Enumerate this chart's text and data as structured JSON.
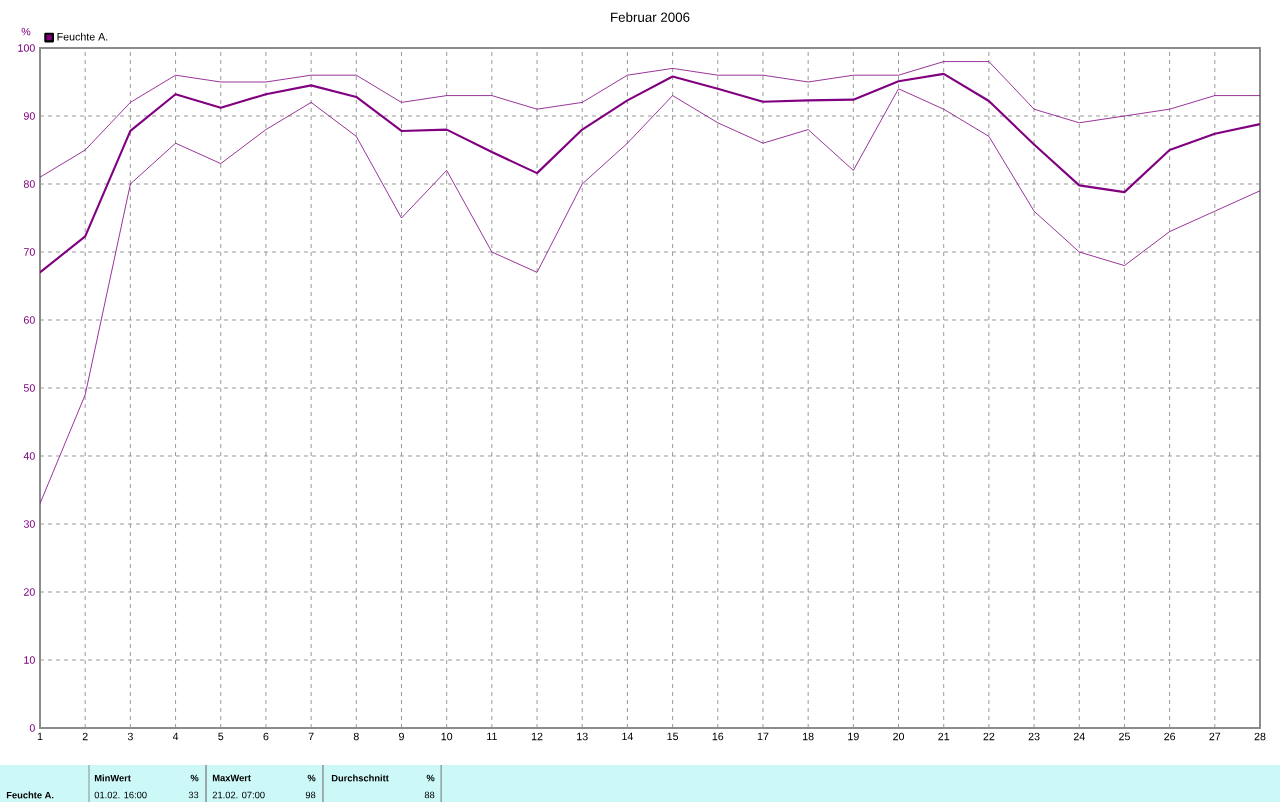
{
  "chart_data": {
    "type": "line",
    "title": "Februar 2006",
    "ylabel": "%",
    "x": [
      1,
      2,
      3,
      4,
      5,
      6,
      7,
      8,
      9,
      10,
      11,
      12,
      13,
      14,
      15,
      16,
      17,
      18,
      19,
      20,
      21,
      22,
      23,
      24,
      25,
      26,
      27,
      28
    ],
    "series": [
      {
        "color": "#800080",
        "values": [
          81,
          85,
          92,
          96,
          95,
          95,
          96,
          96,
          92,
          93,
          93,
          91,
          92,
          96,
          97,
          96,
          96,
          95,
          96,
          96,
          98,
          98,
          91,
          89,
          90,
          91,
          93,
          93
        ]
      },
      {
        "name": "Feuchte A.",
        "color": "#800080",
        "values": [
          67,
          72.3,
          87.8,
          93.2,
          91.2,
          93.2,
          94.5,
          92.8,
          87.8,
          88,
          84.7,
          81.6,
          88,
          92.3,
          95.8,
          94,
          92.1,
          92.3,
          92.4,
          95.1,
          96.2,
          92.2,
          85.8,
          79.8,
          78.8,
          85,
          87.4,
          88.8
        ]
      },
      {
        "color": "#800080",
        "values": [
          33,
          49,
          80,
          86,
          83,
          88,
          92,
          87,
          75,
          82,
          70,
          67,
          80,
          86,
          93,
          89,
          86,
          88,
          82,
          94,
          91,
          87,
          76,
          70,
          68,
          73,
          76,
          79
        ]
      }
    ],
    "xlim": [
      1,
      28
    ],
    "xticks": [
      1,
      2,
      3,
      4,
      5,
      6,
      7,
      8,
      9,
      10,
      11,
      12,
      13,
      14,
      15,
      16,
      17,
      18,
      19,
      20,
      21,
      22,
      23,
      24,
      25,
      26,
      27,
      28
    ],
    "ylim": [
      0,
      100
    ],
    "yticks": [
      0,
      10,
      20,
      30,
      40,
      50,
      60,
      70,
      80,
      90,
      100
    ],
    "grid": true,
    "legend": "top left",
    "marker": "none",
    "line_style": "solid",
    "annotations": [
      "Feuchte A.",
      "MinWert",
      "%",
      "01.02.  16:00",
      "33",
      "MaxWert",
      "%",
      "21.02.  07:00",
      "98",
      "Durchschnitt",
      "%",
      "88"
    ]
  }
}
